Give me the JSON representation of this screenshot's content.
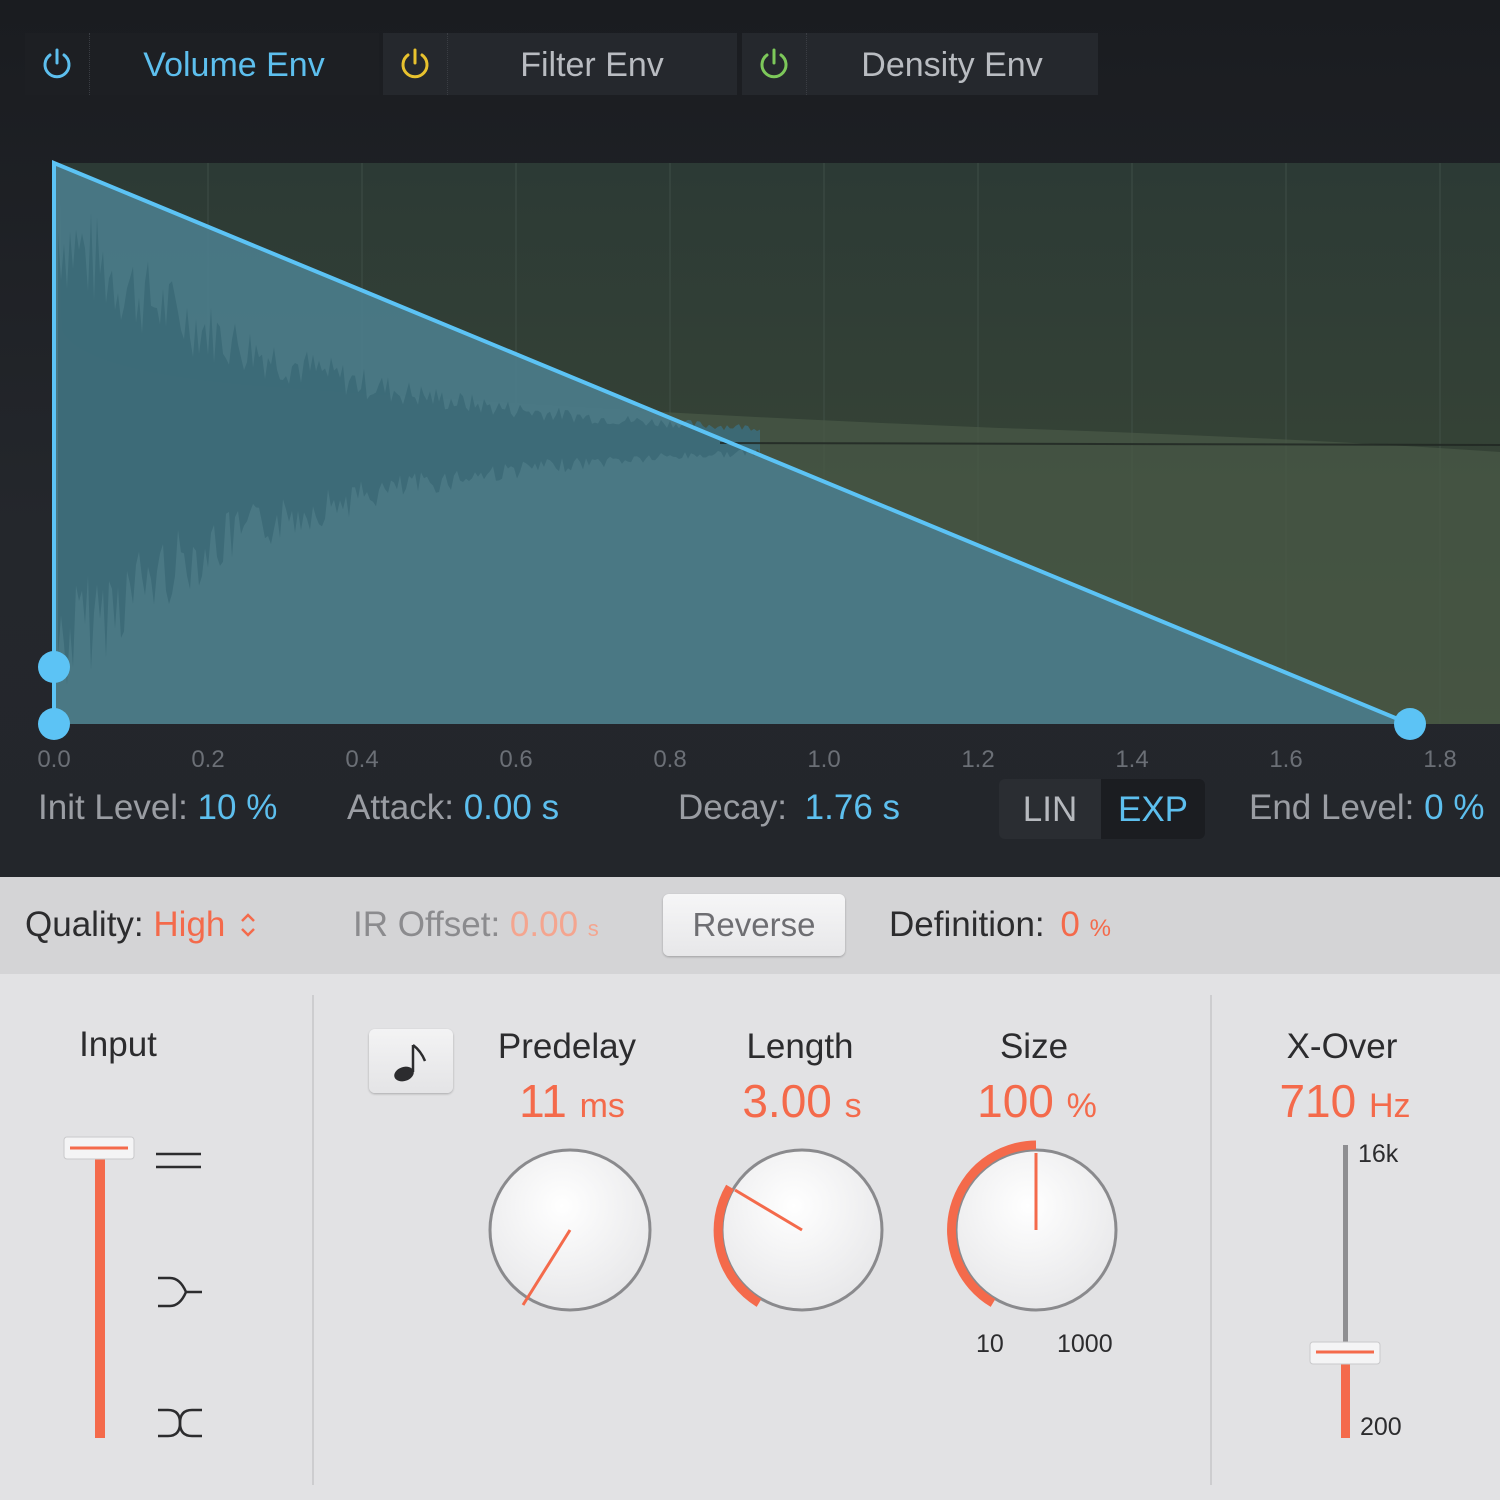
{
  "tabs": [
    {
      "label": "Volume Env",
      "active": true,
      "power_color": "#5dbfee"
    },
    {
      "label": "Filter Env",
      "active": false,
      "power_color": "#e8c22e"
    },
    {
      "label": "Density Env",
      "active": false,
      "power_color": "#7dc85a"
    }
  ],
  "envelope": {
    "x_axis_ticks": [
      "0.0",
      "0.2",
      "0.4",
      "0.6",
      "0.8",
      "1.0",
      "1.2",
      "1.4",
      "1.6",
      "1.8"
    ],
    "init_level": {
      "label": "Init Level:",
      "value": "10 %"
    },
    "attack": {
      "label": "Attack:",
      "value": "0.00 s"
    },
    "decay": {
      "label": "Decay:",
      "value": "1.76 s"
    },
    "curve_mode": {
      "lin_label": "LIN",
      "exp_label": "EXP",
      "selected": "EXP"
    },
    "end_level": {
      "label": "End Level:",
      "value": "0 %"
    },
    "colors": {
      "envelope_line": "#5cc3f5",
      "envelope_fill": "#4b7c8a",
      "waveform": "#3c6a77"
    }
  },
  "toolbar": {
    "quality_label": "Quality:",
    "quality_value": "High",
    "ir_offset_label": "IR Offset:",
    "ir_offset_value": "0.00",
    "ir_offset_unit": "s",
    "reverse_label": "Reverse",
    "definition_label": "Definition:",
    "definition_value": "0",
    "definition_unit": "%"
  },
  "input": {
    "label": "Input",
    "level": 1.0,
    "modes": [
      "stereo-icon",
      "sum-mono-icon",
      "swap-icon"
    ]
  },
  "knobs": {
    "predelay": {
      "label": "Predelay",
      "value": "11",
      "unit": "ms"
    },
    "length": {
      "label": "Length",
      "value": "3.00",
      "unit": "s"
    },
    "size": {
      "label": "Size",
      "value": "100",
      "unit": "%",
      "scale_min": "10",
      "scale_max": "1000"
    }
  },
  "xover": {
    "label": "X-Over",
    "value": "710",
    "unit": "Hz",
    "scale_max": "16k",
    "scale_min": "200"
  },
  "accent_color": "#f46a4b"
}
